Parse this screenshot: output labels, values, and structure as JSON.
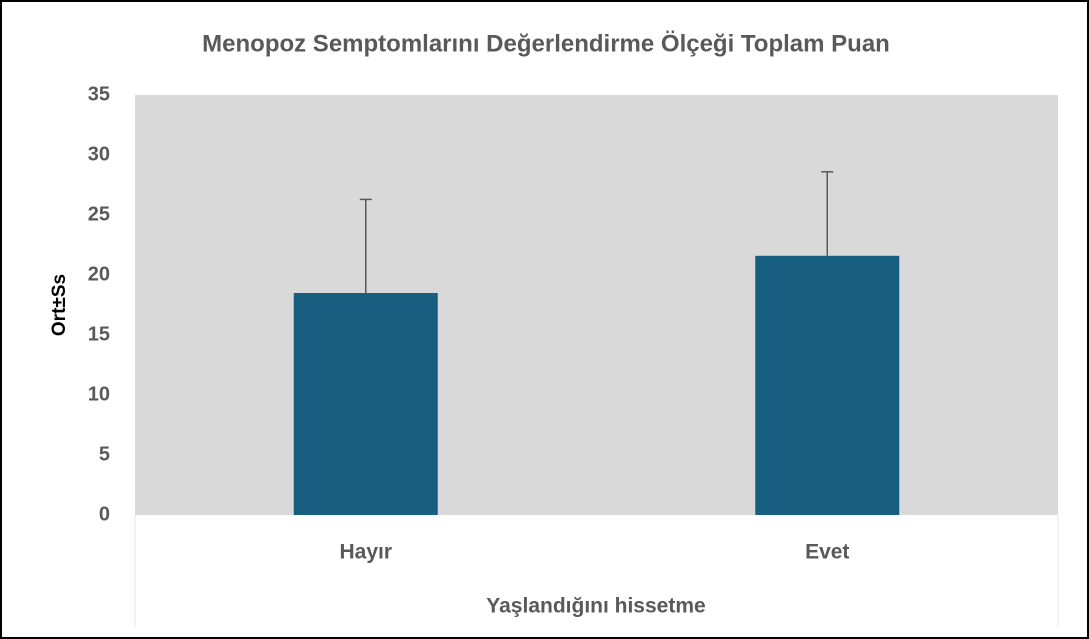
{
  "chart_data": {
    "type": "bar",
    "title": "Menopoz Semptomlarını Değerlendirme Ölçeği Toplam Puan",
    "x_label": "Yaşlandığını hissetme",
    "y_label": "Ort±Ss",
    "categories": [
      "Hayır",
      "Evet"
    ],
    "values": [
      18.5,
      21.6
    ],
    "errors": [
      7.8,
      7.0
    ],
    "color": "#175e80",
    "error_color": "#595959",
    "ylim": [
      0,
      35
    ],
    "yticks": [
      0,
      5,
      10,
      15,
      20,
      25,
      30,
      35
    ],
    "grid": false
  }
}
